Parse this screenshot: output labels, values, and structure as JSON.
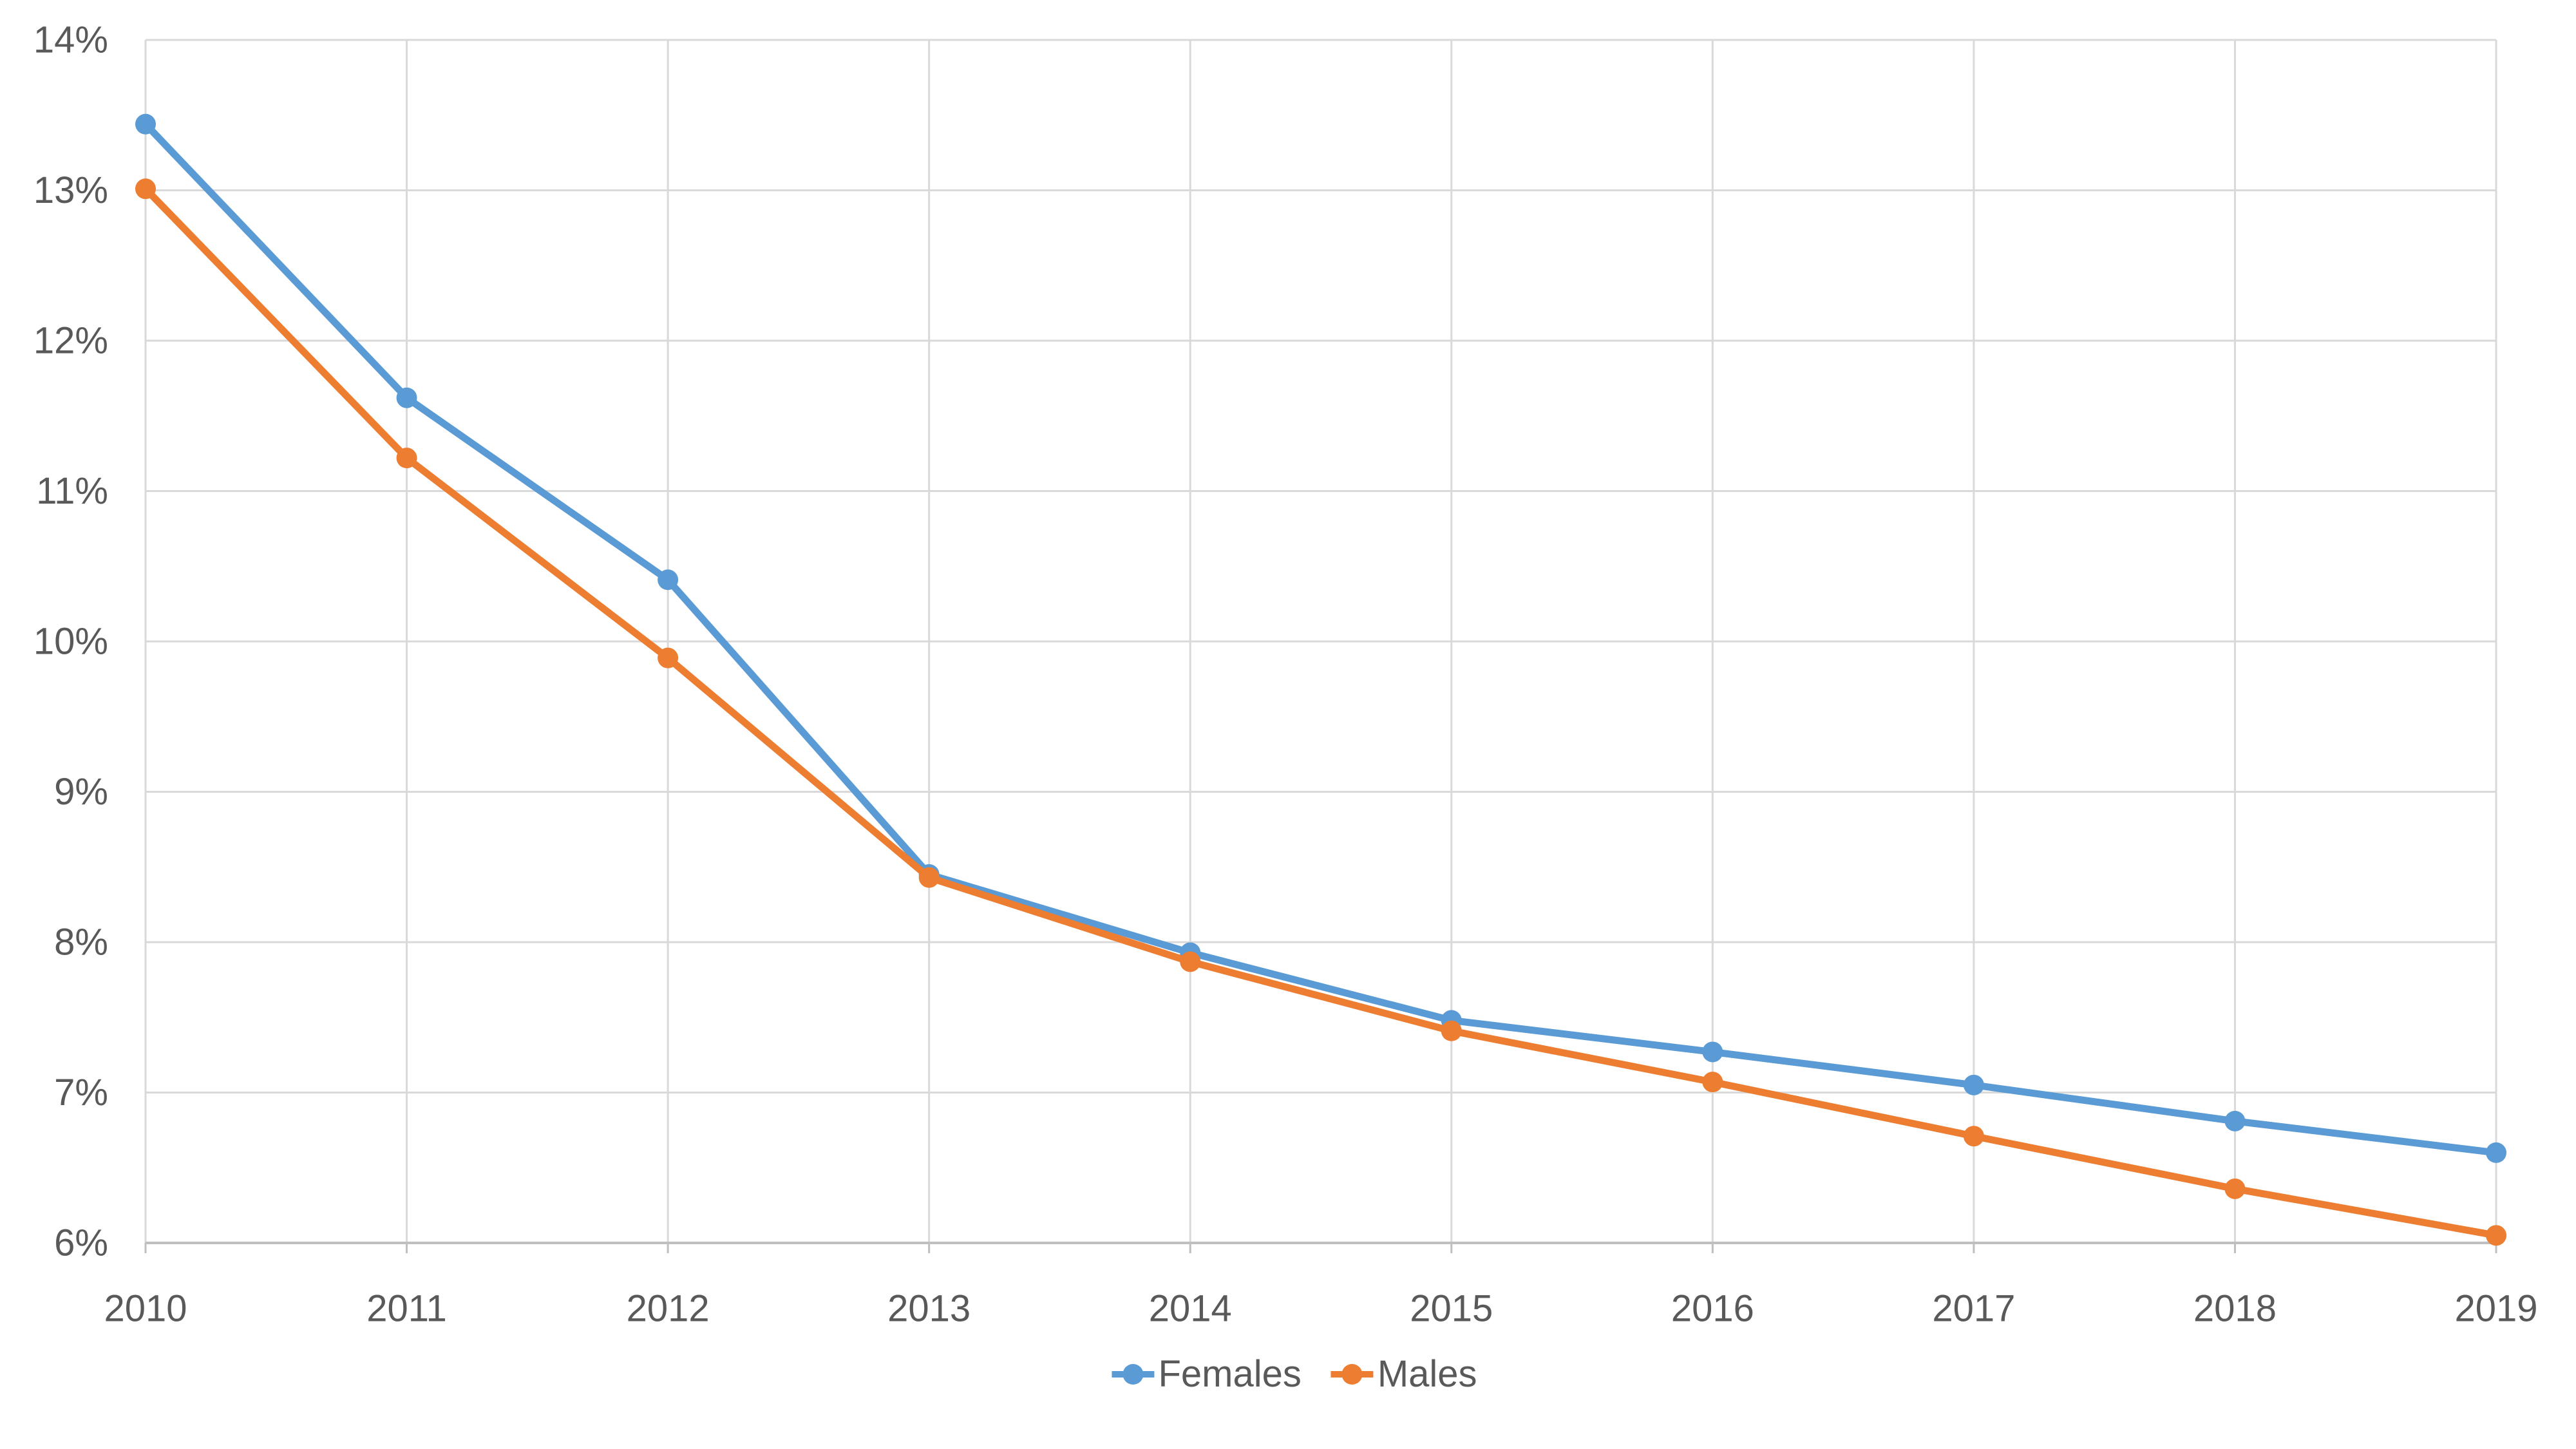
{
  "chart_data": {
    "type": "line",
    "x": [
      "2010",
      "2011",
      "2012",
      "2013",
      "2014",
      "2015",
      "2016",
      "2017",
      "2018",
      "2019"
    ],
    "series": [
      {
        "name": "Females",
        "color": "#5B9BD5",
        "values": [
          13.44,
          11.62,
          10.41,
          8.45,
          7.93,
          7.48,
          7.27,
          7.05,
          6.81,
          6.6
        ]
      },
      {
        "name": "Males",
        "color": "#ED7D31",
        "values": [
          13.01,
          11.22,
          9.89,
          8.43,
          7.87,
          7.41,
          7.07,
          6.71,
          6.36,
          6.05
        ]
      }
    ],
    "ylim": [
      6,
      14
    ],
    "yticks": [
      {
        "value": 6,
        "label": "6%"
      },
      {
        "value": 7,
        "label": "7%"
      },
      {
        "value": 8,
        "label": "8%"
      },
      {
        "value": 9,
        "label": "9%"
      },
      {
        "value": 10,
        "label": "10%"
      },
      {
        "value": 11,
        "label": "11%"
      },
      {
        "value": 12,
        "label": "12%"
      },
      {
        "value": 13,
        "label": "13%"
      },
      {
        "value": 14,
        "label": "14%"
      }
    ],
    "grid": {
      "horizontal": true,
      "vertical": true
    },
    "legend_position": "bottom",
    "colors": {
      "gridline": "#D9D9D9",
      "axis_line": "#BFBFBF",
      "axis_text": "#595959"
    }
  }
}
